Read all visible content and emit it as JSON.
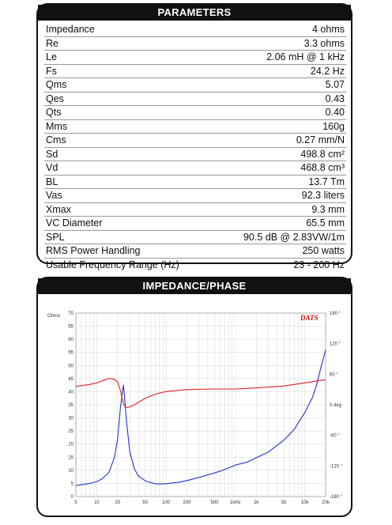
{
  "params": {
    "title": "PARAMETERS",
    "rows": [
      {
        "label": "Impedance",
        "value": "4 ohms"
      },
      {
        "label": "Re",
        "value": "3.3 ohms"
      },
      {
        "label": "Le",
        "value": "2.06 mH @ 1 kHz"
      },
      {
        "label": "Fs",
        "value": "24.2 Hz"
      },
      {
        "label": "Qms",
        "value": "5.07"
      },
      {
        "label": "Qes",
        "value": "0.43"
      },
      {
        "label": "Qts",
        "value": "0.40"
      },
      {
        "label": "Mms",
        "value": "160g"
      },
      {
        "label": "Cms",
        "value": "0.27 mm/N"
      },
      {
        "label": "Sd",
        "value": "498.8 cm²"
      },
      {
        "label": "Vd",
        "value": "468.8 cm³"
      },
      {
        "label": "BL",
        "value": "13.7 Tm"
      },
      {
        "label": "Vas",
        "value": "92.3 liters"
      },
      {
        "label": "Xmax",
        "value": "9.3 mm"
      },
      {
        "label": "VC Diameter",
        "value": "65.5 mm"
      },
      {
        "label": "SPL",
        "value": "90.5 dB @ 2.83VW/1m"
      },
      {
        "label": "RMS Power Handling",
        "value": "250 watts"
      },
      {
        "label": "Usable Frequency Range (Hz)",
        "value": "23 - 200 Hz"
      }
    ]
  },
  "chart": {
    "title": "IMPEDANCE/PHASE",
    "brand": "DATS",
    "left_unit": "Ohms",
    "right_unit": "0 deg",
    "colors": {
      "impedance": "#2233cc",
      "phase": "#dd2222",
      "brand": "#cc1111",
      "grid": "#d4d4d4"
    }
  },
  "chart_data": {
    "type": "line",
    "x_scale": "log",
    "xlim": [
      5,
      20000
    ],
    "x_ticks": [
      "5",
      "10",
      "20",
      "50",
      "100",
      "200",
      "500",
      "1kHz",
      "2k",
      "5k",
      "10k",
      "20k"
    ],
    "ylim_left": [
      0,
      70
    ],
    "y_ticks_left": [
      "70",
      "65",
      "60",
      "55",
      "50",
      "45",
      "40",
      "35",
      "30",
      "25",
      "20",
      "15",
      "10",
      "5",
      "0"
    ],
    "ylim_right": [
      -180,
      180
    ],
    "y_ticks_right": [
      "180 °",
      "120 °",
      "60 °",
      "0 deg",
      "-60 °",
      "-120 °",
      "-180 °"
    ],
    "grid": true,
    "series": [
      {
        "name": "Impedance",
        "axis": "left",
        "x": [
          5,
          8,
          10,
          12,
          15,
          18,
          20,
          22,
          23,
          24.2,
          25,
          27,
          30,
          35,
          40,
          50,
          60,
          70,
          80,
          100,
          150,
          200,
          300,
          500,
          700,
          1000,
          1500,
          2000,
          3000,
          5000,
          7000,
          10000,
          13000,
          15000,
          17000,
          20000
        ],
        "y": [
          4.2,
          5.0,
          5.7,
          6.8,
          9.2,
          15,
          22,
          34,
          38,
          42.5,
          39,
          28,
          17,
          10.5,
          7.8,
          6.0,
          5.3,
          4.9,
          4.8,
          4.9,
          5.4,
          6.1,
          7.3,
          9.0,
          10.3,
          12.0,
          13.2,
          14.8,
          17.0,
          21.5,
          25.5,
          32,
          38,
          43,
          49,
          56
        ]
      },
      {
        "name": "Phase",
        "axis": "right",
        "x": [
          5,
          8,
          10,
          12,
          15,
          18,
          20,
          22,
          24.2,
          26,
          28,
          30,
          35,
          40,
          50,
          70,
          100,
          200,
          500,
          1000,
          2000,
          5000,
          10000,
          15000,
          20000
        ],
        "y": [
          36,
          40,
          43,
          47,
          52,
          50,
          45,
          28,
          2,
          -5,
          -5,
          -4,
          0,
          5,
          13,
          21,
          26,
          30,
          31,
          31,
          33,
          37,
          43,
          47,
          49
        ]
      }
    ]
  }
}
